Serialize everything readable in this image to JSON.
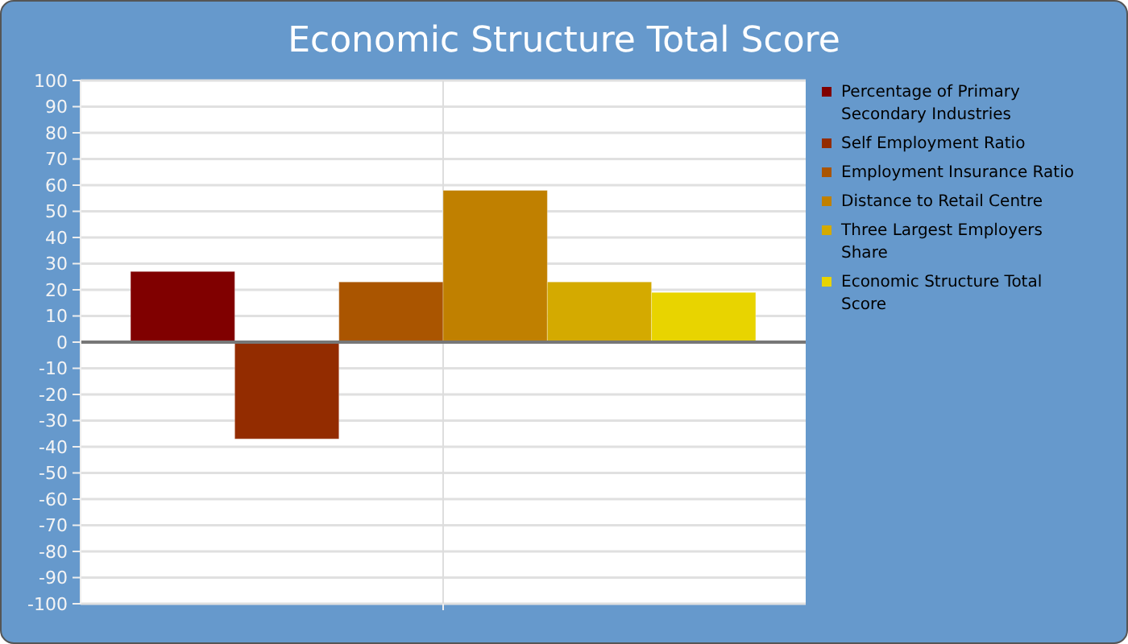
{
  "chart_data": {
    "type": "bar",
    "title": "Economic Structure Total Score",
    "categories": [
      null
    ],
    "series": [
      {
        "name": "Percentage of Primary Secondary Industries",
        "color": "#800000",
        "values": [
          27
        ]
      },
      {
        "name": "Self Employment Ratio",
        "color": "#932c00",
        "values": [
          -37
        ]
      },
      {
        "name": "Employment Insurance Ratio",
        "color": "#aa5500",
        "values": [
          23
        ]
      },
      {
        "name": "Distance to Retail Centre",
        "color": "#c08000",
        "values": [
          58
        ]
      },
      {
        "name": "Three Largest Employers Share",
        "color": "#d4aa00",
        "values": [
          23
        ]
      },
      {
        "name": "Economic Structure Total Score",
        "color": "#e8d400",
        "values": [
          19
        ]
      }
    ],
    "ylim": [
      -100,
      100
    ],
    "yticks": [
      -100,
      -90,
      -80,
      -70,
      -60,
      -50,
      -40,
      -30,
      -20,
      -10,
      0,
      10,
      20,
      30,
      40,
      50,
      60,
      70,
      80,
      90,
      100
    ],
    "grid": true,
    "legend": "right"
  }
}
